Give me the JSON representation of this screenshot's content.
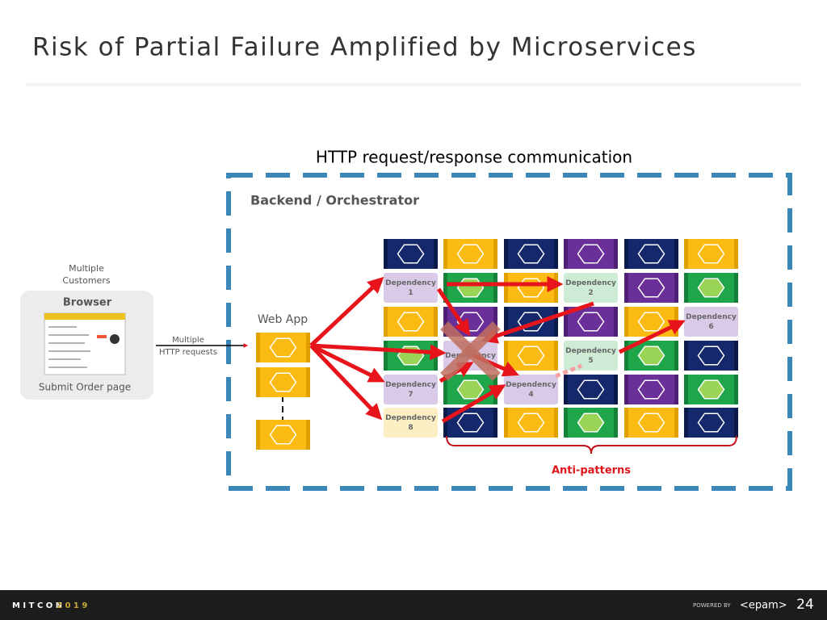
{
  "header": {
    "title": "Risk of Partial Failure Amplified by Microservices"
  },
  "diagram": {
    "caption": "HTTP request/response communication",
    "container_label": "Backend / Orchestrator",
    "customers_label": [
      "Multiple",
      "Customers"
    ],
    "browser": {
      "title": "Browser",
      "caption": "Submit Order page"
    },
    "request_label": [
      "Multiple",
      "HTTP requests"
    ],
    "web_app_label": "Web App",
    "dependencies": [
      {
        "lines": [
          "Dependency",
          "1"
        ]
      },
      {
        "lines": [
          "Dependency",
          "2"
        ]
      },
      {
        "lines": [
          "Dependency"
        ]
      },
      {
        "lines": [
          "Dependency",
          "4"
        ]
      },
      {
        "lines": [
          "Dependency",
          "5"
        ]
      },
      {
        "lines": [
          "Dependency",
          "6"
        ]
      },
      {
        "lines": [
          "Dependency",
          "7"
        ]
      },
      {
        "lines": [
          "Dependency",
          "8"
        ]
      }
    ],
    "brace_label": "Anti-patterns"
  },
  "footer": {
    "event": "M I T C O N",
    "year": "2 0 1 9",
    "powered_by": "POWERED BY",
    "brand": "<epam>",
    "page_number": "24"
  }
}
